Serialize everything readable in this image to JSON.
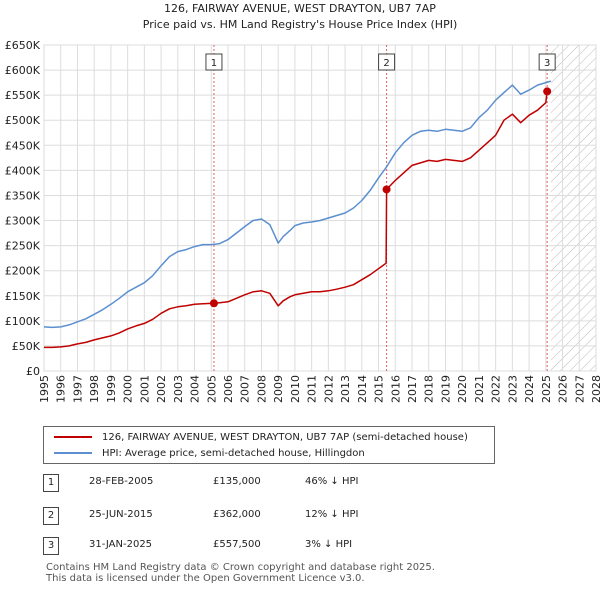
{
  "title_line1": "126, FAIRWAY AVENUE, WEST DRAYTON, UB7 7AP",
  "title_line2": "Price paid vs. HM Land Registry's House Price Index (HPI)",
  "colors": {
    "property": "#c00000",
    "hpi": "#5b8fd0",
    "grid": "#dddddd",
    "future_hatch": "#bbbbbb"
  },
  "legend": {
    "property_label": "126, FAIRWAY AVENUE, WEST DRAYTON, UB7 7AP (semi-detached house)",
    "hpi_label": "HPI: Average price, semi-detached house, Hillingdon"
  },
  "sales": [
    {
      "num": "1",
      "date": "28-FEB-2005",
      "price": "£135,000",
      "hpi": "46% ↓ HPI"
    },
    {
      "num": "2",
      "date": "25-JUN-2015",
      "price": "£362,000",
      "hpi": "12% ↓ HPI"
    },
    {
      "num": "3",
      "date": "31-JAN-2025",
      "price": "£557,500",
      "hpi": "3% ↓ HPI"
    }
  ],
  "footer_line1": "Contains HM Land Registry data © Crown copyright and database right 2025.",
  "footer_line2": "This data is licensed under the Open Government Licence v3.0.",
  "chart_data": {
    "type": "line",
    "title": "126, FAIRWAY AVENUE, WEST DRAYTON, UB7 7AP — Price paid vs. HM Land Registry's House Price Index (HPI)",
    "xlabel": "",
    "ylabel": "",
    "xlim": [
      1995,
      2028
    ],
    "ylim": [
      0,
      650000
    ],
    "x_ticks": [
      "1995",
      "1996",
      "1997",
      "1998",
      "1999",
      "2000",
      "2001",
      "2002",
      "2003",
      "2004",
      "2005",
      "2006",
      "2007",
      "2008",
      "2009",
      "2010",
      "2011",
      "2012",
      "2013",
      "2014",
      "2015",
      "2016",
      "2017",
      "2018",
      "2019",
      "2020",
      "2021",
      "2022",
      "2023",
      "2024",
      "2025",
      "2026",
      "2027",
      "2028"
    ],
    "y_ticks": [
      "£0",
      "£50K",
      "£100K",
      "£150K",
      "£200K",
      "£250K",
      "£300K",
      "£350K",
      "£400K",
      "£450K",
      "£500K",
      "£550K",
      "£600K",
      "£650K"
    ],
    "projection_start": 2025.3,
    "series": [
      {
        "name": "126, FAIRWAY AVENUE, WEST DRAYTON, UB7 7AP (semi-detached house)",
        "x": [
          1995,
          1995.5,
          1996,
          1996.5,
          1997,
          1997.5,
          1998,
          1998.5,
          1999,
          1999.5,
          2000,
          2000.5,
          2001,
          2001.5,
          2002,
          2002.5,
          2003,
          2003.5,
          2004,
          2004.5,
          2005.16,
          2005.5,
          2006,
          2006.5,
          2007,
          2007.5,
          2008,
          2008.5,
          2009,
          2009.3,
          2009.7,
          2010,
          2010.5,
          2011,
          2011.5,
          2012,
          2012.5,
          2013,
          2013.5,
          2014,
          2014.5,
          2015,
          2015.45,
          2015.48,
          2016,
          2016.5,
          2017,
          2017.5,
          2018,
          2018.5,
          2019,
          2019.5,
          2020,
          2020.5,
          2021,
          2021.5,
          2022,
          2022.5,
          2023,
          2023.5,
          2024,
          2024.5,
          2025.0,
          2025.08,
          2025.3
        ],
        "values": [
          47000,
          47000,
          48000,
          50000,
          54000,
          57000,
          62000,
          66000,
          70000,
          76000,
          84000,
          90000,
          95000,
          103000,
          115000,
          124000,
          128000,
          130000,
          133000,
          134000,
          135000,
          136000,
          138000,
          145000,
          152000,
          158000,
          160000,
          155000,
          130000,
          140000,
          148000,
          152000,
          155000,
          158000,
          158000,
          160000,
          163000,
          167000,
          172000,
          182000,
          192000,
          204000,
          215000,
          362000,
          380000,
          395000,
          410000,
          415000,
          420000,
          418000,
          422000,
          420000,
          418000,
          425000,
          440000,
          455000,
          470000,
          500000,
          512000,
          495000,
          510000,
          520000,
          535000,
          557500,
          560000
        ]
      },
      {
        "name": "HPI: Average price, semi-detached house, Hillingdon",
        "x": [
          1995,
          1995.5,
          1996,
          1996.5,
          1997,
          1997.5,
          1998,
          1998.5,
          1999,
          1999.5,
          2000,
          2000.5,
          2001,
          2001.5,
          2002,
          2002.5,
          2003,
          2003.5,
          2004,
          2004.5,
          2005,
          2005.5,
          2006,
          2006.5,
          2007,
          2007.5,
          2008,
          2008.5,
          2009,
          2009.3,
          2009.7,
          2010,
          2010.5,
          2011,
          2011.5,
          2012,
          2012.5,
          2013,
          2013.5,
          2014,
          2014.5,
          2015,
          2015.5,
          2016,
          2016.5,
          2017,
          2017.5,
          2018,
          2018.5,
          2019,
          2019.5,
          2020,
          2020.5,
          2021,
          2021.5,
          2022,
          2022.5,
          2023,
          2023.5,
          2024,
          2024.5,
          2025,
          2025.3
        ],
        "values": [
          88000,
          87000,
          88000,
          92000,
          98000,
          104000,
          113000,
          122000,
          133000,
          145000,
          158000,
          167000,
          176000,
          190000,
          210000,
          228000,
          238000,
          242000,
          248000,
          252000,
          252000,
          254000,
          262000,
          275000,
          288000,
          300000,
          303000,
          292000,
          255000,
          268000,
          280000,
          290000,
          295000,
          297000,
          300000,
          305000,
          310000,
          315000,
          325000,
          340000,
          360000,
          385000,
          408000,
          435000,
          455000,
          470000,
          478000,
          480000,
          478000,
          482000,
          480000,
          478000,
          485000,
          505000,
          520000,
          540000,
          555000,
          570000,
          552000,
          560000,
          570000,
          575000,
          578000
        ]
      }
    ],
    "sale_markers": [
      {
        "label": "1",
        "x": 2005.16,
        "value": 135000
      },
      {
        "label": "2",
        "x": 2015.48,
        "value": 362000
      },
      {
        "label": "3",
        "x": 2025.08,
        "value": 557500
      }
    ]
  }
}
